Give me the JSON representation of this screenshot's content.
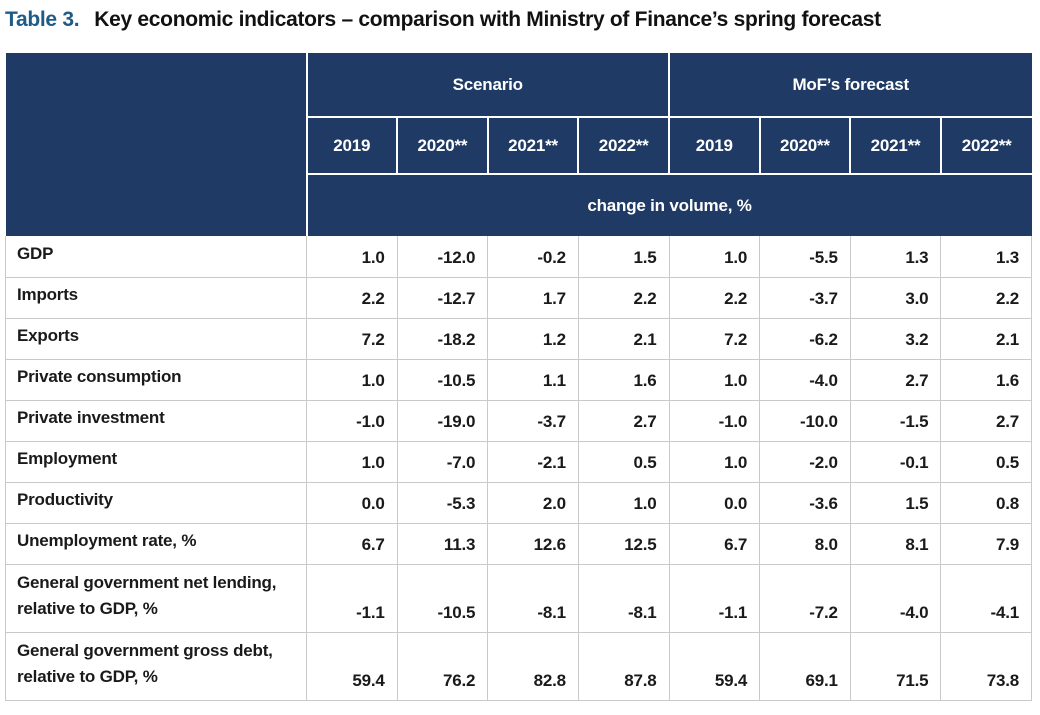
{
  "title": {
    "prefix": "Table 3.",
    "text": "Key economic indicators – comparison with Ministry of Finance’s spring forecast"
  },
  "colors": {
    "header_bg": "#1f3a64",
    "title_accent": "#1e5c87",
    "grid": "#c9c9c9",
    "header_border": "#ffffff",
    "text": "#1a1a1a"
  },
  "table": {
    "groups": [
      {
        "label": "Scenario",
        "years": [
          "2019",
          "2020**",
          "2021**",
          "2022**"
        ]
      },
      {
        "label": "MoF’s forecast",
        "years": [
          "2019",
          "2020**",
          "2021**",
          "2022**"
        ]
      }
    ],
    "unit_row": "change in volume, %",
    "rows": [
      {
        "label": "GDP",
        "values": [
          "1.0",
          "-12.0",
          "-0.2",
          "1.5",
          "1.0",
          "-5.5",
          "1.3",
          "1.3"
        ]
      },
      {
        "label": "Imports",
        "values": [
          "2.2",
          "-12.7",
          "1.7",
          "2.2",
          "2.2",
          "-3.7",
          "3.0",
          "2.2"
        ]
      },
      {
        "label": "Exports",
        "values": [
          "7.2",
          "-18.2",
          "1.2",
          "2.1",
          "7.2",
          "-6.2",
          "3.2",
          "2.1"
        ]
      },
      {
        "label": "Private consumption",
        "values": [
          "1.0",
          "-10.5",
          "1.1",
          "1.6",
          "1.0",
          "-4.0",
          "2.7",
          "1.6"
        ]
      },
      {
        "label": "Private investment",
        "values": [
          "-1.0",
          "-19.0",
          "-3.7",
          "2.7",
          "-1.0",
          "-10.0",
          "-1.5",
          "2.7"
        ]
      },
      {
        "label": "Employment",
        "values": [
          "1.0",
          "-7.0",
          "-2.1",
          "0.5",
          "1.0",
          "-2.0",
          "-0.1",
          "0.5"
        ]
      },
      {
        "label": "Productivity",
        "values": [
          "0.0",
          "-5.3",
          "2.0",
          "1.0",
          "0.0",
          "-3.6",
          "1.5",
          "0.8"
        ]
      },
      {
        "label": "Unemployment rate, %",
        "values": [
          "6.7",
          "11.3",
          "12.6",
          "12.5",
          "6.7",
          "8.0",
          "8.1",
          "7.9"
        ]
      },
      {
        "label": "General government net lending,\nrelative to GDP, %",
        "values": [
          "-1.1",
          "-10.5",
          "-8.1",
          "-8.1",
          "-1.1",
          "-7.2",
          "-4.0",
          "-4.1"
        ]
      },
      {
        "label": "General government gross debt,\nrelative to GDP, %",
        "values": [
          "59.4",
          "76.2",
          "82.8",
          "87.8",
          "59.4",
          "69.1",
          "71.5",
          "73.8"
        ]
      }
    ]
  }
}
